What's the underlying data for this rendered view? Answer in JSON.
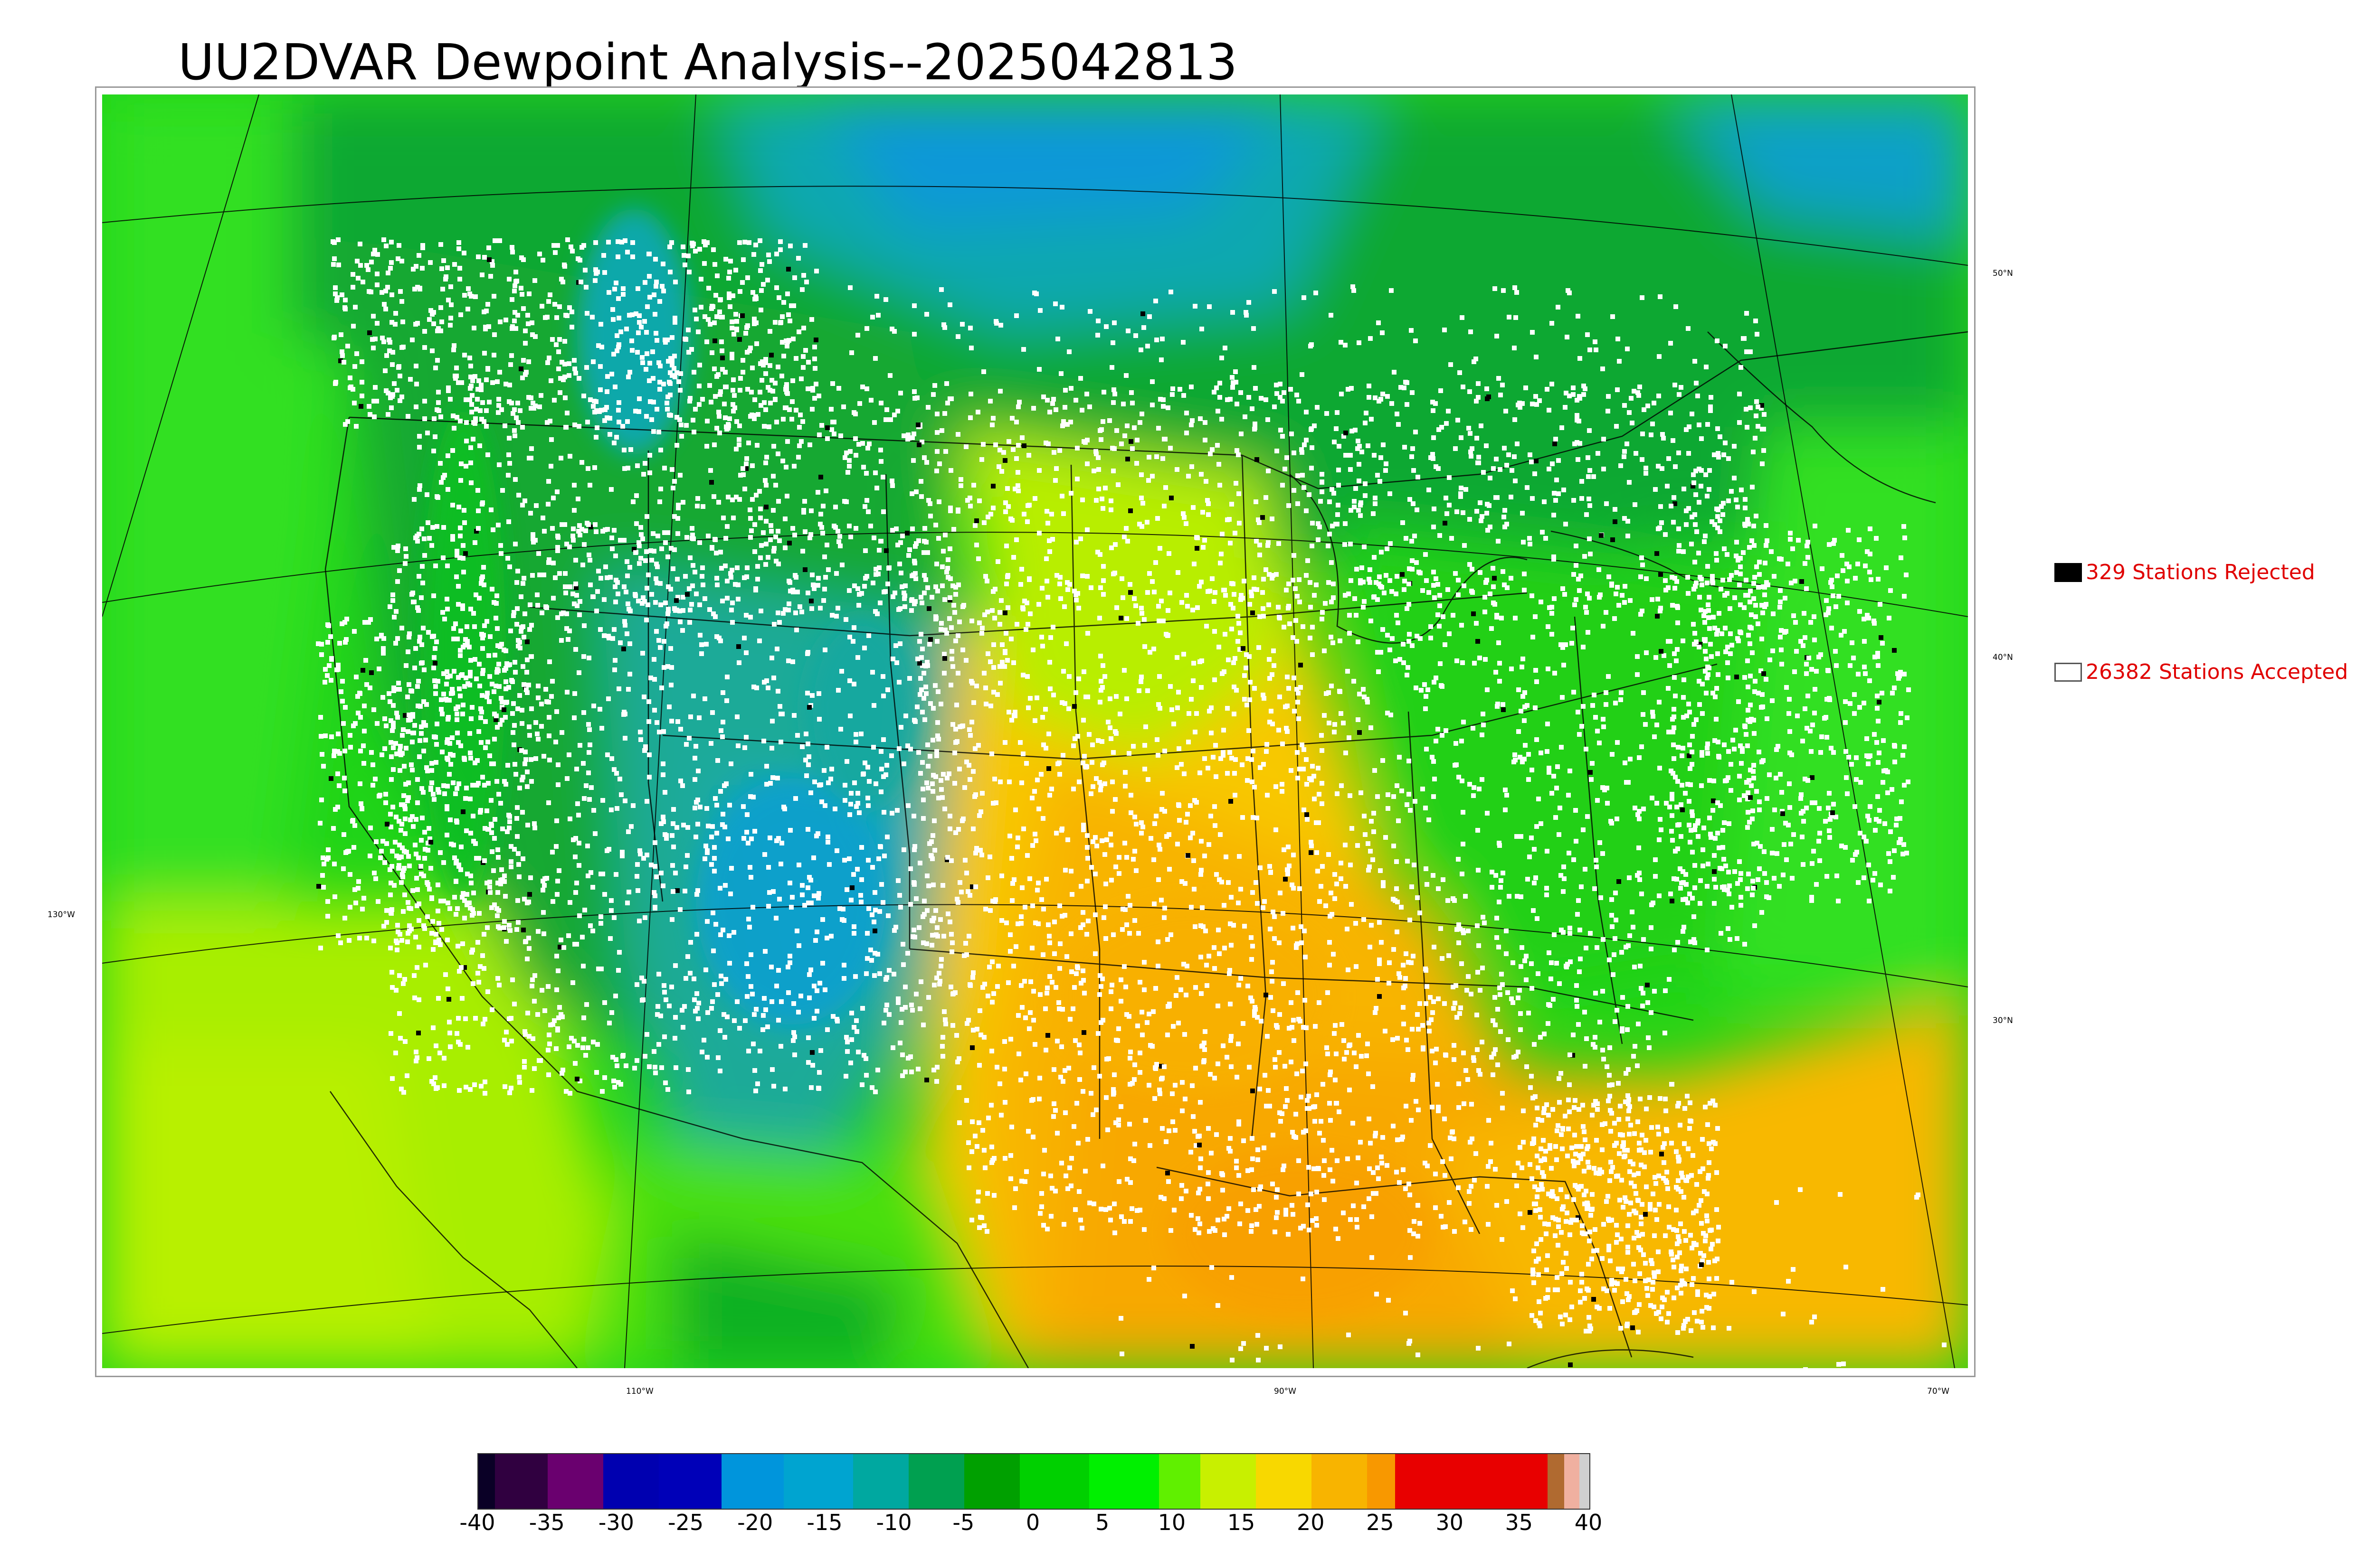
{
  "title": "UU2DVAR Dewpoint Analysis--2025042813",
  "map": {
    "variable": "Dewpoint",
    "lat_labels": [
      "50°N",
      "40°N",
      "30°N",
      "130°W"
    ],
    "lon_labels": [
      "110°W",
      "90°W",
      "70°W"
    ]
  },
  "legend": {
    "rejected": {
      "label": "329 Stations Rejected",
      "color": "#000000"
    },
    "accepted": {
      "label": "26382 Stations Accepted",
      "color": "#ffffff"
    }
  },
  "colorbar": {
    "ticks": [
      "-40",
      "-35",
      "-30",
      "-25",
      "-20",
      "-15",
      "-10",
      "-5",
      "0",
      "5",
      "10",
      "15",
      "20",
      "25",
      "30",
      "35",
      "40"
    ],
    "range": [
      -40,
      40
    ],
    "bands": [
      {
        "from": -40,
        "to": -38.8,
        "color": "#0a0026"
      },
      {
        "from": -38.8,
        "to": -35,
        "color": "#300040"
      },
      {
        "from": -35,
        "to": -31,
        "color": "#6a006f"
      },
      {
        "from": -31,
        "to": -27,
        "color": "#0000b0"
      },
      {
        "from": -27,
        "to": -22.5,
        "color": "#0000b8"
      },
      {
        "from": -22.5,
        "to": -18,
        "color": "#0095dc"
      },
      {
        "from": -18,
        "to": -13,
        "color": "#00a4d0"
      },
      {
        "from": -13,
        "to": -9,
        "color": "#00a8a0"
      },
      {
        "from": -9,
        "to": -5,
        "color": "#00a050"
      },
      {
        "from": -5,
        "to": -1,
        "color": "#00a000"
      },
      {
        "from": -1,
        "to": 4,
        "color": "#00d000"
      },
      {
        "from": 4,
        "to": 9,
        "color": "#00f000"
      },
      {
        "from": 9,
        "to": 12,
        "color": "#60f000"
      },
      {
        "from": 12,
        "to": 16,
        "color": "#c8f000"
      },
      {
        "from": 16,
        "to": 20,
        "color": "#f8d800"
      },
      {
        "from": 20,
        "to": 24,
        "color": "#f8b400"
      },
      {
        "from": 24,
        "to": 26,
        "color": "#f89800"
      },
      {
        "from": 26,
        "to": 37,
        "color": "#e80000"
      },
      {
        "from": 37,
        "to": 38.2,
        "color": "#b06a30"
      },
      {
        "from": 38.2,
        "to": 39.3,
        "color": "#f0b0a0"
      },
      {
        "from": 39.3,
        "to": 40,
        "color": "#d0d0d0"
      }
    ]
  }
}
